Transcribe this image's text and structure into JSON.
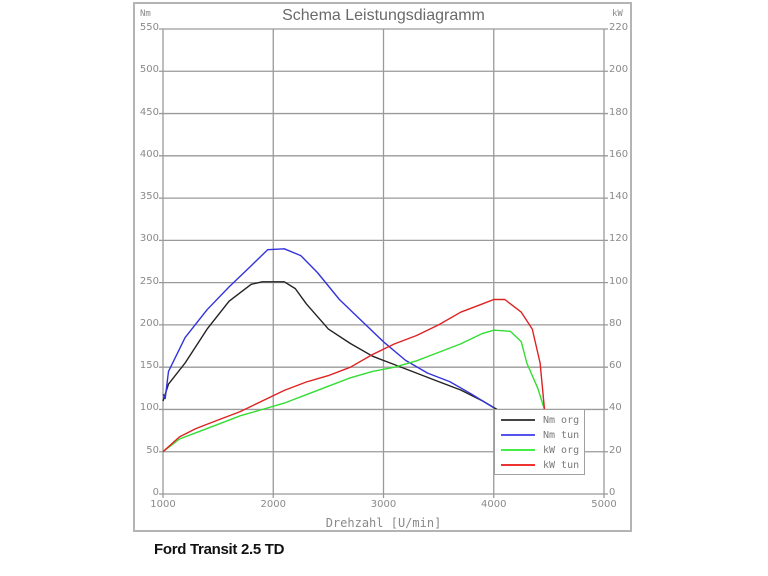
{
  "title": "Schema Leistungsdiagramm",
  "caption": "Ford Transit 2.5 TD",
  "axes": {
    "left_unit": "Nm",
    "right_unit": "kW",
    "xlabel": "Drehzahl [U/min]",
    "left_ticks": [
      "0",
      "50",
      "100",
      "150",
      "200",
      "250",
      "300",
      "350",
      "400",
      "450",
      "500",
      "550"
    ],
    "right_ticks": [
      "0",
      "20",
      "40",
      "60",
      "80",
      "100",
      "120",
      "140",
      "160",
      "180",
      "200",
      "220"
    ],
    "x_ticks": [
      "1000",
      "2000",
      "3000",
      "4000",
      "5000"
    ]
  },
  "legend": [
    {
      "label": "Nm org",
      "color": "#222222"
    },
    {
      "label": "Nm tun",
      "color": "#3333dd"
    },
    {
      "label": "kW org",
      "color": "#33dd33"
    },
    {
      "label": "kW tun",
      "color": "#dd2222"
    }
  ],
  "chart_data": {
    "type": "line",
    "title": "Schema Leistungsdiagramm",
    "xlabel": "Drehzahl [U/min]",
    "ylabel": "Nm",
    "y2label": "kW",
    "xlim": [
      1000,
      5000
    ],
    "ylim": [
      0,
      550
    ],
    "y2lim": [
      0,
      220
    ],
    "grid": true,
    "legend_position": "lower right",
    "series": [
      {
        "name": "Nm org",
        "axis": "left",
        "color": "#222222",
        "x": [
          1000,
          1050,
          1200,
          1400,
          1600,
          1800,
          1900,
          2100,
          2200,
          2300,
          2500,
          2700,
          2900,
          3100,
          3300,
          3500,
          3700,
          3900,
          4030
        ],
        "values": [
          110,
          130,
          155,
          195,
          228,
          248,
          251,
          251,
          243,
          225,
          195,
          178,
          163,
          153,
          143,
          133,
          123,
          110,
          100
        ]
      },
      {
        "name": "Nm tun",
        "axis": "left",
        "color": "#3333dd",
        "x": [
          1000,
          1020,
          1050,
          1200,
          1400,
          1600,
          1800,
          1950,
          2100,
          2250,
          2400,
          2600,
          2800,
          3000,
          3200,
          3400,
          3600,
          3800,
          4000
        ],
        "values": [
          118,
          113,
          145,
          185,
          218,
          245,
          270,
          289,
          290,
          282,
          262,
          230,
          205,
          180,
          158,
          143,
          133,
          118,
          102
        ]
      },
      {
        "name": "kW org",
        "axis": "right",
        "color": "#33dd33",
        "x": [
          1000,
          1150,
          1300,
          1500,
          1700,
          1900,
          2100,
          2300,
          2500,
          2700,
          2900,
          3100,
          3300,
          3500,
          3700,
          3900,
          4000,
          4150,
          4250,
          4300,
          4400,
          4460
        ],
        "values": [
          20,
          26,
          29,
          33,
          37,
          40,
          43,
          47,
          51,
          55,
          58,
          60,
          63,
          67,
          71,
          76,
          77.5,
          77,
          72,
          62,
          50,
          40
        ]
      },
      {
        "name": "kW tun",
        "axis": "right",
        "color": "#dd2222",
        "x": [
          1000,
          1150,
          1300,
          1500,
          1700,
          1900,
          2100,
          2300,
          2500,
          2700,
          2900,
          3100,
          3300,
          3500,
          3700,
          3900,
          4000,
          4100,
          4250,
          4350,
          4420,
          4460
        ],
        "values": [
          20,
          27,
          31,
          35,
          39,
          44,
          49,
          53,
          56,
          60,
          66,
          71,
          75,
          80,
          86,
          90,
          92,
          92,
          86,
          78,
          62,
          40
        ]
      }
    ]
  }
}
